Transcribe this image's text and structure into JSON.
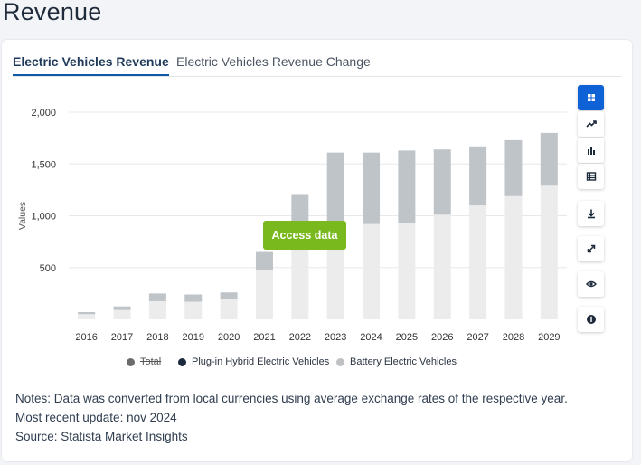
{
  "page": {
    "title": "Revenue"
  },
  "tabs": [
    {
      "label": "Electric Vehicles Revenue",
      "active": true
    },
    {
      "label": "Electric Vehicles Revenue Change",
      "active": false
    }
  ],
  "access_button": {
    "label": "Access data",
    "color": "#7ab91e"
  },
  "toolbar": {
    "items": [
      {
        "icon": "grid-icon",
        "active": true
      },
      {
        "icon": "trend-line-icon",
        "active": false
      },
      {
        "icon": "bar-chart-icon",
        "active": false
      },
      {
        "icon": "table-icon",
        "active": false
      },
      {
        "icon": "download-icon",
        "active": false
      },
      {
        "icon": "expand-icon",
        "active": false
      },
      {
        "icon": "eye-icon",
        "active": false
      },
      {
        "icon": "info-icon",
        "active": false
      }
    ],
    "accent": "#0f62d6"
  },
  "legend": [
    {
      "label": "Total",
      "color": "#6b6b6b",
      "struck": true
    },
    {
      "label": "Plug-in Hybrid Electric Vehicles",
      "color": "#1b2a3d",
      "struck": false
    },
    {
      "label": "Battery Electric Vehicles",
      "color": "#bfc1c3",
      "struck": false
    }
  ],
  "notes": {
    "line1": "Notes: Data was converted from local currencies using average exchange rates of the respective year.",
    "line2": "Most recent update: nov 2024",
    "line3": "Source: Statista Market Insights"
  },
  "chart_data": {
    "type": "bar",
    "stacked": true,
    "ylabel": "Values",
    "xlabel": "",
    "ylim": [
      0,
      2000
    ],
    "yticks": [
      500,
      1000,
      1500,
      2000
    ],
    "ytick_labels": [
      "500",
      "1,000",
      "1,500",
      "2,000"
    ],
    "grid": true,
    "legend_position": "bottom",
    "categories": [
      "2016",
      "2017",
      "2018",
      "2019",
      "2020",
      "2021",
      "2022",
      "2023",
      "2024",
      "2025",
      "2026",
      "2027",
      "2028",
      "2029"
    ],
    "series": [
      {
        "name": "Battery Electric Vehicles",
        "color": "#ececec",
        "values": [
          50,
          90,
          175,
          170,
          195,
          480,
          910,
          690,
          920,
          930,
          1010,
          1100,
          1190,
          1290
        ]
      },
      {
        "name": "Plug-in Hybrid Electric Vehicles",
        "color": "#bfc4c9",
        "values": [
          20,
          35,
          75,
          70,
          65,
          170,
          300,
          920,
          690,
          700,
          630,
          570,
          540,
          510
        ]
      }
    ]
  }
}
